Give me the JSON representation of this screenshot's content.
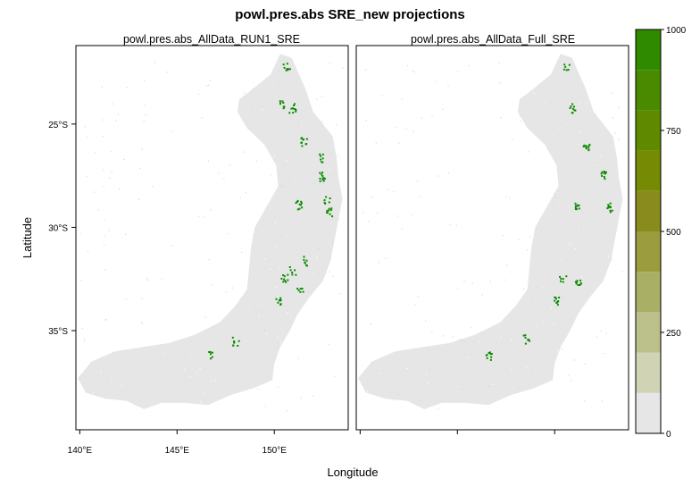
{
  "chart_data": {
    "type": "heatmap",
    "title": "powl.pres.abs SRE_new projections",
    "xlabel": "Longitude",
    "ylabel": "Latitude",
    "x_range": [
      139.8,
      153.8
    ],
    "y_range": [
      -39.8,
      -21.2
    ],
    "x_ticks": [
      {
        "value": 140,
        "label": "140°E"
      },
      {
        "value": 145,
        "label": "145°E"
      },
      {
        "value": 150,
        "label": "150°E"
      }
    ],
    "y_ticks": [
      {
        "value": -25,
        "label": "25°S"
      },
      {
        "value": -30,
        "label": "30°S"
      },
      {
        "value": -35,
        "label": "35°S"
      }
    ],
    "panels": [
      {
        "name": "powl.pres.abs_AllData_RUN1_SRE"
      },
      {
        "name": "powl.pres.abs_AllData_Full_SRE"
      }
    ],
    "colorbar": {
      "range": [
        0,
        1000
      ],
      "ticks": [
        {
          "value": 0,
          "label": "0"
        },
        {
          "value": 250,
          "label": "250"
        },
        {
          "value": 500,
          "label": "500"
        },
        {
          "value": 750,
          "label": "750"
        },
        {
          "value": 1000,
          "label": "1000"
        }
      ],
      "bins": [
        0,
        100,
        200,
        300,
        400,
        500,
        600,
        700,
        800,
        900,
        1000
      ],
      "colors": [
        "#e6e6e6",
        "#d0d3b4",
        "#bcc18c",
        "#aaaf66",
        "#9a9c3e",
        "#898c1c",
        "#768a03",
        "#5f8a00",
        "#4a8a00",
        "#2f8a00",
        "#0a8c00"
      ]
    },
    "background_value": 0,
    "presence_value": 1000,
    "presence_patches_left": [
      {
        "lon": 150.6,
        "lat": -22.2,
        "value": 1000
      },
      {
        "lon": 150.9,
        "lat": -24.2,
        "value": 1000
      },
      {
        "lon": 150.3,
        "lat": -24.0,
        "value": 1000
      },
      {
        "lon": 151.5,
        "lat": -25.8,
        "value": 1000
      },
      {
        "lon": 152.3,
        "lat": -26.6,
        "value": 1000
      },
      {
        "lon": 152.4,
        "lat": -27.5,
        "value": 1000
      },
      {
        "lon": 152.7,
        "lat": -28.6,
        "value": 1000
      },
      {
        "lon": 152.8,
        "lat": -29.2,
        "value": 1000
      },
      {
        "lon": 151.2,
        "lat": -28.9,
        "value": 1000
      },
      {
        "lon": 151.6,
        "lat": -31.6,
        "value": 1000
      },
      {
        "lon": 150.5,
        "lat": -32.4,
        "value": 1000
      },
      {
        "lon": 150.9,
        "lat": -32.1,
        "value": 1000
      },
      {
        "lon": 151.3,
        "lat": -32.9,
        "value": 1000
      },
      {
        "lon": 150.2,
        "lat": -33.6,
        "value": 1000
      },
      {
        "lon": 146.7,
        "lat": -36.2,
        "value": 1000
      },
      {
        "lon": 148.0,
        "lat": -35.5,
        "value": 1000
      }
    ],
    "presence_patches_right": [
      {
        "lon": 150.6,
        "lat": -22.2,
        "value": 1000
      },
      {
        "lon": 150.9,
        "lat": -24.2,
        "value": 1000
      },
      {
        "lon": 151.6,
        "lat": -26.0,
        "value": 1000
      },
      {
        "lon": 152.5,
        "lat": -27.4,
        "value": 1000
      },
      {
        "lon": 152.8,
        "lat": -29.0,
        "value": 1000
      },
      {
        "lon": 151.1,
        "lat": -29.0,
        "value": 1000
      },
      {
        "lon": 150.4,
        "lat": -32.4,
        "value": 1000
      },
      {
        "lon": 151.2,
        "lat": -32.7,
        "value": 1000
      },
      {
        "lon": 150.1,
        "lat": -33.5,
        "value": 1000
      },
      {
        "lon": 148.5,
        "lat": -35.4,
        "value": 1000
      },
      {
        "lon": 146.6,
        "lat": -36.2,
        "value": 1000
      }
    ]
  }
}
